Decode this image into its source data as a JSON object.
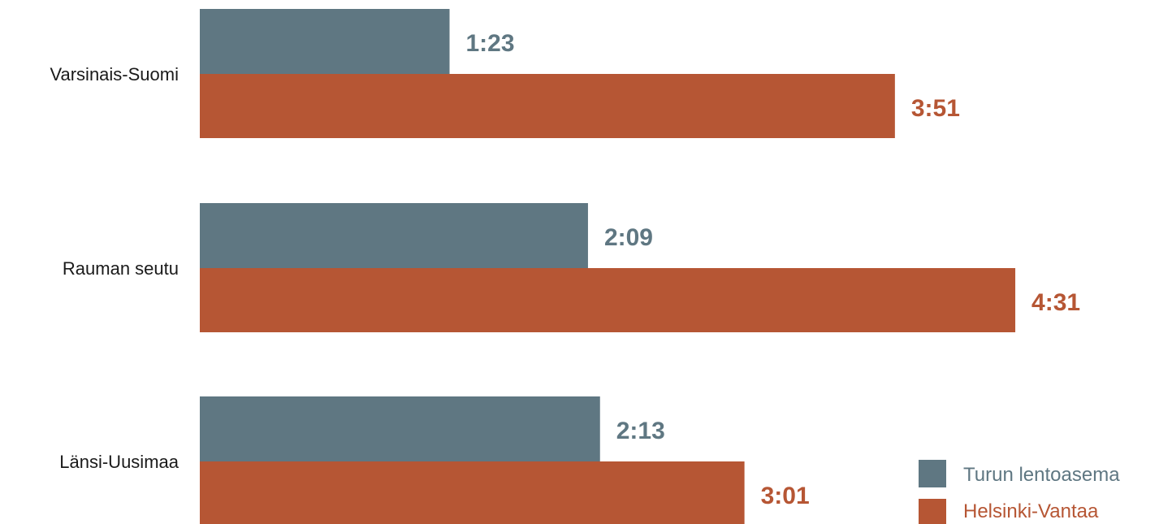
{
  "colors": {
    "turku": "#5f7782",
    "helsinki": "#b65634",
    "background": "#ffffff"
  },
  "chart_data": {
    "type": "bar",
    "orientation": "horizontal",
    "grid": false,
    "legend_position": "bottom-right",
    "categories": [
      "Varsinais-Suomi",
      "Rauman seutu",
      "Länsi-Uusimaa"
    ],
    "series": [
      {
        "name": "Turun lentoasema",
        "color_key": "turku",
        "values": [
          83,
          129,
          133
        ],
        "labels": [
          "1:23",
          "2:09",
          "2:13"
        ]
      },
      {
        "name": "Helsinki-Vantaa",
        "color_key": "helsinki",
        "values": [
          231,
          271,
          181
        ],
        "labels": [
          "3:51",
          "4:31",
          "3:01"
        ]
      }
    ]
  }
}
